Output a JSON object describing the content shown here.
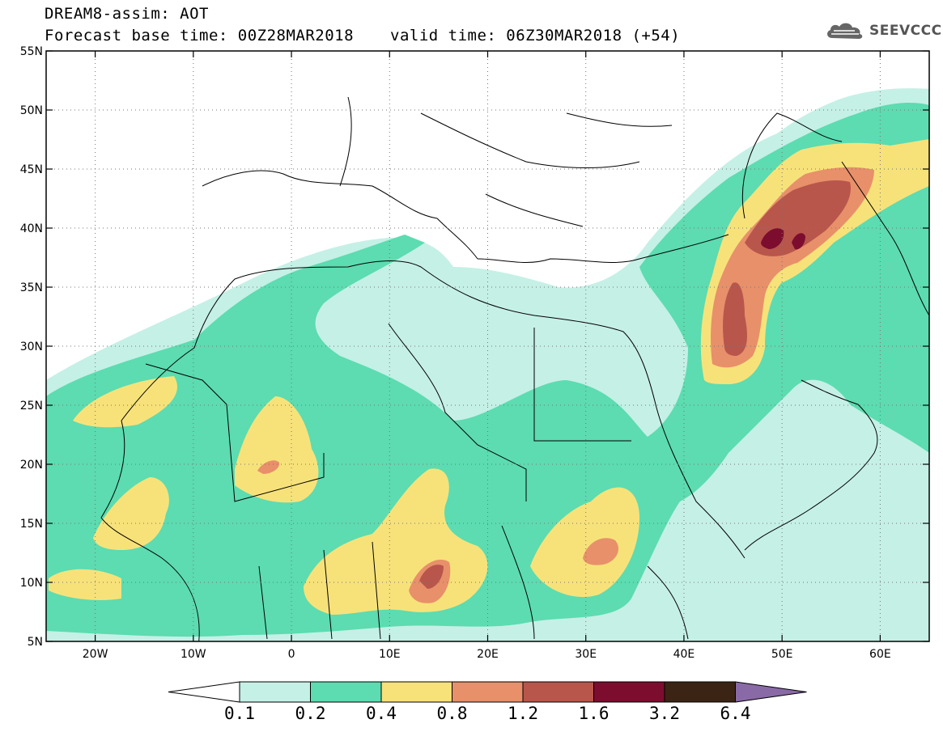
{
  "header": {
    "line1": "DREAM8-assim: AOT",
    "line2": "Forecast base time: 00Z28MAR2018",
    "valid": "valid time: 06Z30MAR2018 (+54)",
    "logo_text": "SEEVCCC"
  },
  "map": {
    "lon_range": [
      -25,
      65
    ],
    "lat_range": [
      5,
      55
    ],
    "lat_ticks": [
      {
        "value": 55,
        "label": "55N"
      },
      {
        "value": 50,
        "label": "50N"
      },
      {
        "value": 45,
        "label": "45N"
      },
      {
        "value": 40,
        "label": "40N"
      },
      {
        "value": 35,
        "label": "35N"
      },
      {
        "value": 30,
        "label": "30N"
      },
      {
        "value": 25,
        "label": "25N"
      },
      {
        "value": 20,
        "label": "20N"
      },
      {
        "value": 15,
        "label": "15N"
      },
      {
        "value": 10,
        "label": "10N"
      },
      {
        "value": 5,
        "label": "5N"
      }
    ],
    "lon_ticks": [
      {
        "value": -20,
        "label": "20W"
      },
      {
        "value": -10,
        "label": "10W"
      },
      {
        "value": 0,
        "label": "0"
      },
      {
        "value": 10,
        "label": "10E"
      },
      {
        "value": 20,
        "label": "20E"
      },
      {
        "value": 30,
        "label": "30E"
      },
      {
        "value": 40,
        "label": "40E"
      },
      {
        "value": 50,
        "label": "50E"
      },
      {
        "value": 60,
        "label": "60E"
      }
    ],
    "grid": true
  },
  "colorbar": {
    "labels": [
      "0.1",
      "0.2",
      "0.4",
      "0.8",
      "1.2",
      "1.6",
      "3.2",
      "6.4"
    ],
    "colors": [
      "#c5f0e6",
      "#5cdcb0",
      "#f7e27a",
      "#e8906a",
      "#b8564c",
      "#7d0d2e",
      "#3b2414"
    ],
    "under_color": "#ffffff",
    "over_color": "#8a6aa6"
  },
  "colors": {
    "c1": "#c5f0e6",
    "c2": "#5cdcb0",
    "c3": "#f7e27a",
    "c4": "#e8906a",
    "c5": "#b8564c",
    "c6": "#7d0d2e"
  }
}
